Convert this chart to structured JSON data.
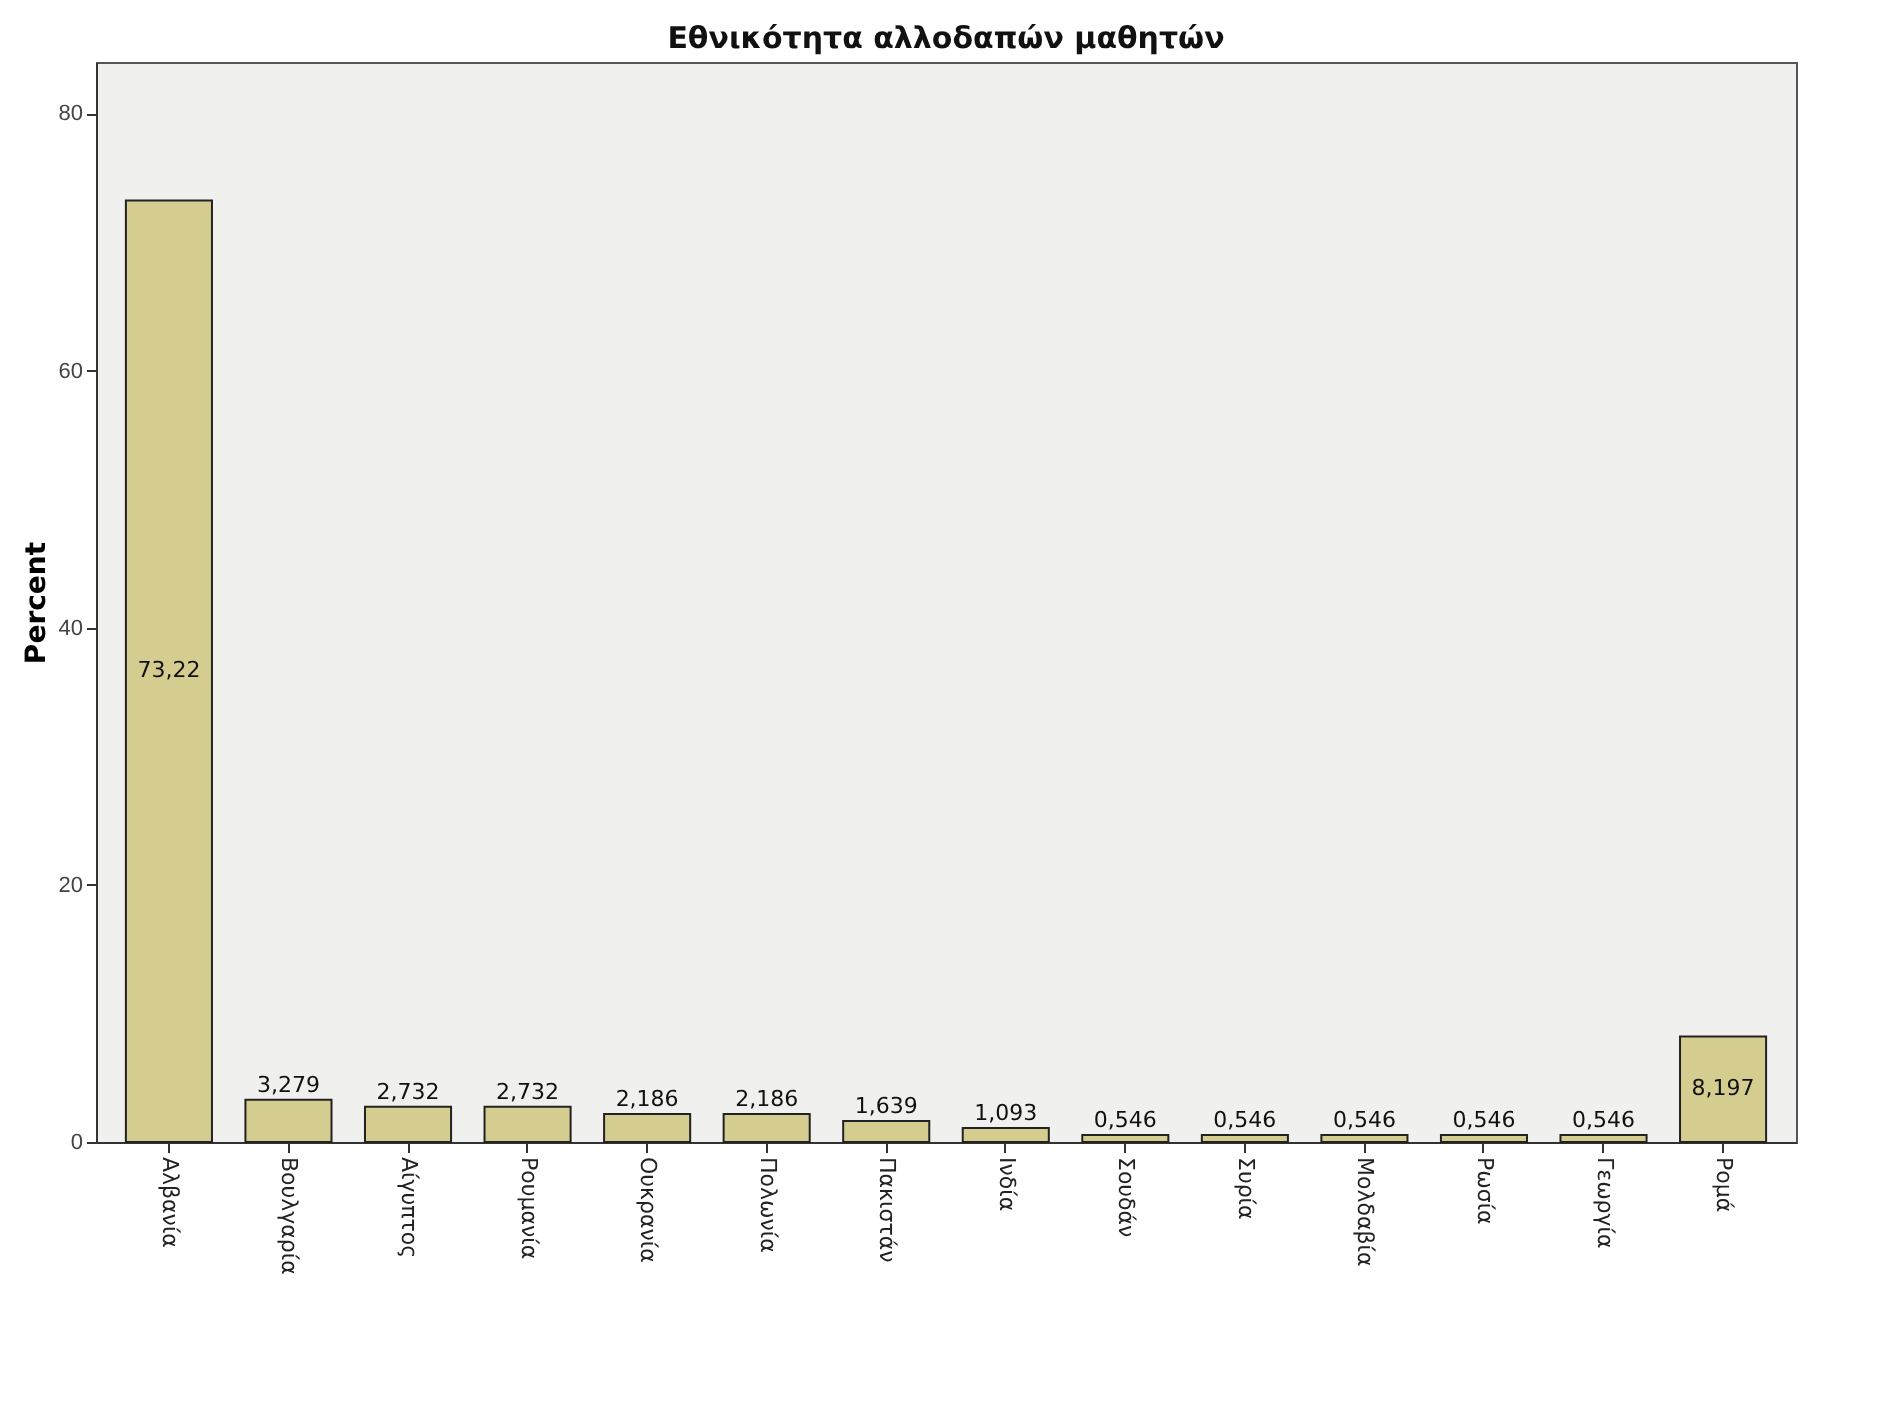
{
  "chart_data": {
    "type": "bar",
    "title": "Εθνικότητα αλλοδαπών μαθητών",
    "ylabel": "Percent",
    "categories": [
      "Αλβανία",
      "Βουλγαρία",
      "Αίγυπτος",
      "Ρουμανία",
      "Ουκρανία",
      "Πολωνία",
      "Πακιστάν",
      "Ινδία",
      "Σουδάν",
      "Συρία",
      "Μολδαβία",
      "Ρωσία",
      "Γεωργία",
      "Ρομά"
    ],
    "values": [
      73.22,
      3.279,
      2.732,
      2.732,
      2.186,
      2.186,
      1.639,
      1.093,
      0.546,
      0.546,
      0.546,
      0.546,
      0.546,
      8.197
    ],
    "value_labels": [
      "73,22",
      "3,279",
      "2,732",
      "2,732",
      "2,186",
      "2,186",
      "1,639",
      "1,093",
      "0,546",
      "0,546",
      "0,546",
      "0,546",
      "0,546",
      "8,197"
    ],
    "color": "#d4cd8f",
    "ylim": [
      0,
      84
    ],
    "yticks": [
      0,
      20,
      40,
      60,
      80
    ],
    "grid": false
  }
}
